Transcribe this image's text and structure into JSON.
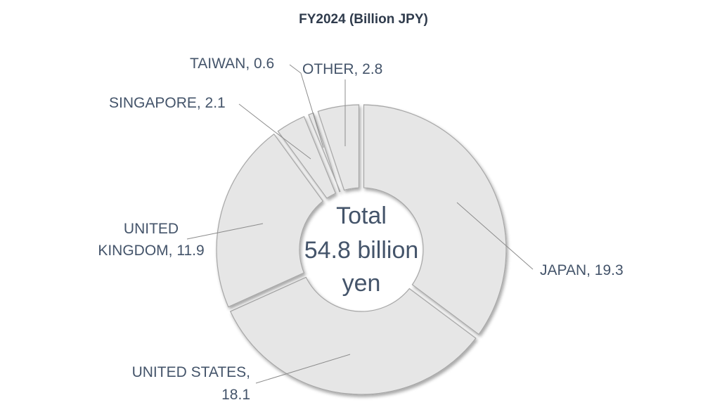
{
  "chart_data": {
    "type": "pie",
    "title": "FY2024 (Billion JPY)",
    "center_label": [
      "Total",
      "54.8 billion",
      "yen"
    ],
    "slices": [
      {
        "label": "JAPAN",
        "value": 19.3,
        "text": "JAPAN, 19.3"
      },
      {
        "label": "UNITED STATES",
        "value": 18.1,
        "text": [
          "UNITED STATES,",
          "18.1"
        ]
      },
      {
        "label": "UNITED KINGDOM",
        "value": 11.9,
        "text": [
          "UNITED",
          "KINGDOM, 11.9"
        ]
      },
      {
        "label": "SINGAPORE",
        "value": 2.1,
        "text": "SINGAPORE, 2.1"
      },
      {
        "label": "TAIWAN",
        "value": 0.6,
        "text": "TAIWAN, 0.6"
      },
      {
        "label": "OTHER",
        "value": 2.8,
        "text": "OTHER, 2.8"
      }
    ],
    "colors": {
      "slice_fill": "#e6e6e6",
      "slice_stroke": "#a6a6a6",
      "text": "#44546a",
      "title": "#2f3b4c",
      "leader": "#8c8c8c"
    }
  }
}
